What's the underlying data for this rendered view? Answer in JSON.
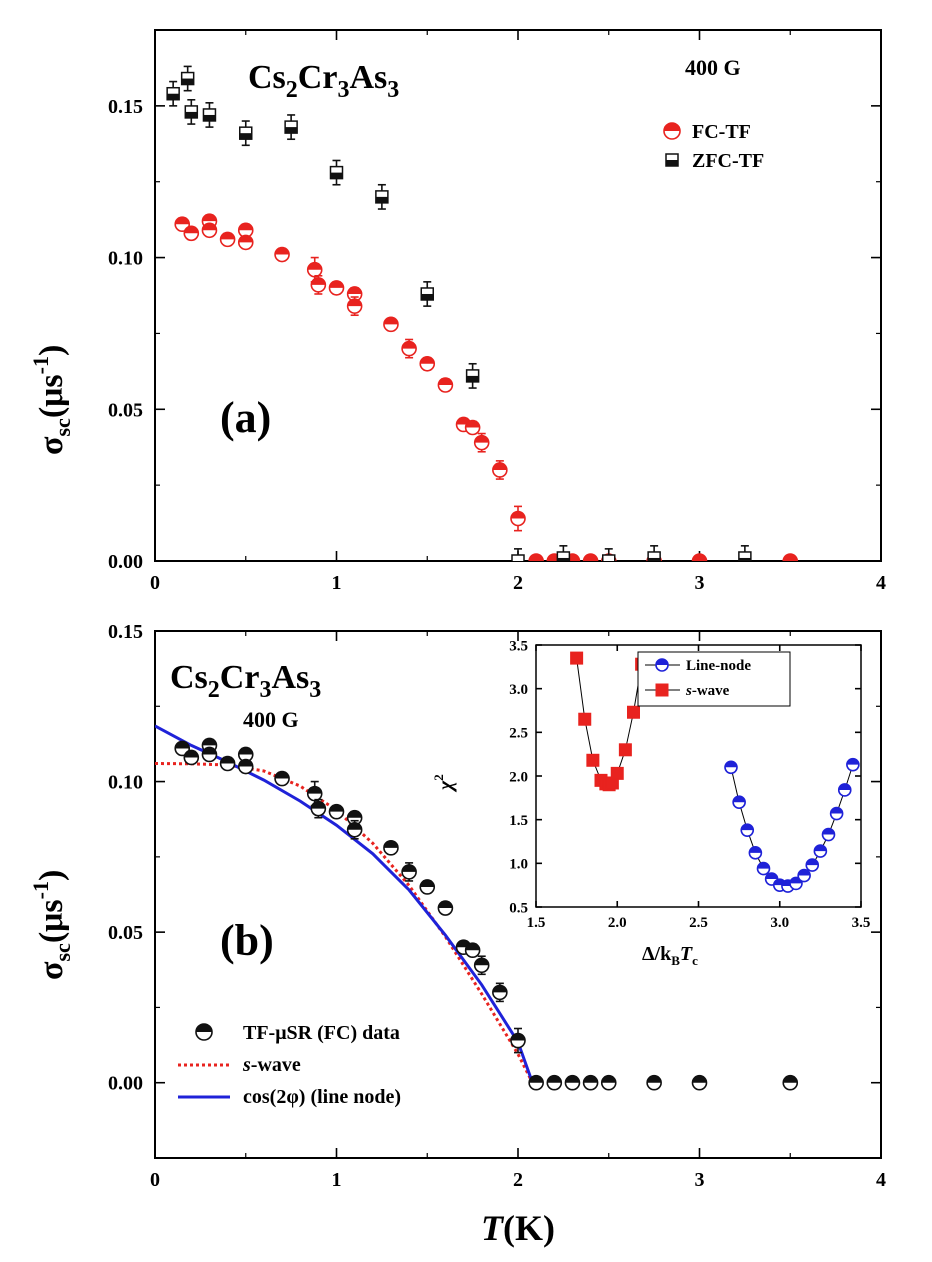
{
  "chart_data": [
    {
      "panel": "(a)",
      "type": "scatter",
      "compound": {
        "a": "Cs",
        "a_sub": "2",
        "b": "Cr",
        "b_sub": "3",
        "c": "As",
        "c_sub": "3"
      },
      "field": "400 G",
      "xlim": [
        0,
        4
      ],
      "ylim": [
        0,
        0.175
      ],
      "x_ticks": [
        "0",
        "1",
        "2",
        "3",
        "4"
      ],
      "y_ticks": [
        "0.00",
        "0.05",
        "0.10",
        "0.15"
      ],
      "ylabel": {
        "main": "σ",
        "sub": "sc",
        "open": "(μs",
        "sup": "-1",
        "close": ")"
      },
      "legend_position": "top-right",
      "series": [
        {
          "name": "FC-TF",
          "color": "#e8231f",
          "marker": "half-circle",
          "x": [
            0.15,
            0.2,
            0.3,
            0.3,
            0.4,
            0.5,
            0.5,
            0.7,
            0.88,
            0.9,
            1.0,
            1.1,
            1.1,
            1.3,
            1.4,
            1.5,
            1.6,
            1.7,
            1.75,
            1.8,
            1.9,
            2.0,
            2.1,
            2.2,
            2.3,
            2.4,
            2.5,
            2.75,
            3.0,
            3.5
          ],
          "y": [
            0.111,
            0.108,
            0.112,
            0.109,
            0.106,
            0.109,
            0.105,
            0.101,
            0.096,
            0.091,
            0.09,
            0.088,
            0.084,
            0.078,
            0.07,
            0.065,
            0.058,
            0.045,
            0.044,
            0.039,
            0.03,
            0.014,
            0.0,
            0.0,
            0.0,
            0.0,
            0.0,
            0.0,
            0.0,
            0.0
          ],
          "err": [
            0.002,
            0.002,
            0.002,
            0.002,
            0.002,
            0.002,
            0.002,
            0.002,
            0.004,
            0.003,
            0.002,
            0.002,
            0.003,
            0.002,
            0.003,
            0.002,
            0.002,
            0.002,
            0.002,
            0.003,
            0.003,
            0.004,
            0.0,
            0.0,
            0.0,
            0.0,
            0.0,
            0.0,
            0.0,
            0.0
          ]
        },
        {
          "name": "ZFC-TF",
          "color": "#111111",
          "marker": "half-square",
          "x": [
            0.1,
            0.18,
            0.2,
            0.3,
            0.5,
            0.75,
            1.0,
            1.25,
            1.5,
            1.75,
            2.0,
            2.25,
            2.5,
            2.75,
            3.25
          ],
          "y": [
            0.154,
            0.159,
            0.148,
            0.147,
            0.141,
            0.143,
            0.128,
            0.12,
            0.088,
            0.061,
            0.0,
            0.001,
            0.0,
            0.001,
            0.001
          ],
          "err": [
            0.004,
            0.004,
            0.004,
            0.004,
            0.004,
            0.004,
            0.004,
            0.004,
            0.004,
            0.004,
            0.004,
            0.004,
            0.004,
            0.004,
            0.004
          ]
        }
      ]
    },
    {
      "panel": "(b)",
      "type": "scatter",
      "compound": {
        "a": "Cs",
        "a_sub": "2",
        "b": "Cr",
        "b_sub": "3",
        "c": "As",
        "c_sub": "3"
      },
      "field": "400 G",
      "xlim": [
        0,
        4
      ],
      "ylim": [
        -0.025,
        0.15
      ],
      "x_ticks": [
        "0",
        "1",
        "2",
        "3",
        "4"
      ],
      "y_ticks": [
        "0.00",
        "0.05",
        "0.10",
        "0.15"
      ],
      "ylabel": {
        "main": "σ",
        "sub": "sc",
        "open": "(μs",
        "sup": "-1",
        "close": ")"
      },
      "xlabel": {
        "main": "T",
        "unit": "(K)"
      },
      "legend_position": "bottom-left",
      "series": [
        {
          "name": "TF-μSR (FC) data",
          "color": "#111111",
          "marker": "half-circle",
          "x": [
            0.15,
            0.2,
            0.3,
            0.3,
            0.4,
            0.5,
            0.5,
            0.7,
            0.88,
            0.9,
            1.0,
            1.1,
            1.1,
            1.3,
            1.4,
            1.5,
            1.6,
            1.7,
            1.75,
            1.8,
            1.9,
            2.0,
            2.1,
            2.2,
            2.3,
            2.4,
            2.5,
            2.75,
            3.0,
            3.5
          ],
          "y": [
            0.111,
            0.108,
            0.112,
            0.109,
            0.106,
            0.109,
            0.105,
            0.101,
            0.096,
            0.091,
            0.09,
            0.088,
            0.084,
            0.078,
            0.07,
            0.065,
            0.058,
            0.045,
            0.044,
            0.039,
            0.03,
            0.014,
            0.0,
            0.0,
            0.0,
            0.0,
            0.0,
            0.0,
            0.0,
            0.0
          ],
          "err": [
            0.002,
            0.002,
            0.002,
            0.002,
            0.002,
            0.002,
            0.002,
            0.002,
            0.004,
            0.003,
            0.002,
            0.002,
            0.003,
            0.002,
            0.003,
            0.002,
            0.002,
            0.002,
            0.002,
            0.003,
            0.003,
            0.004,
            0.0,
            0.0,
            0.0,
            0.0,
            0.0,
            0.0,
            0.0,
            0.0
          ]
        },
        {
          "name": "s-wave",
          "label_italic": "s",
          "label_rest": "-wave",
          "color": "#e8231f",
          "style": "dotted",
          "x": [
            0.0,
            0.2,
            0.4,
            0.6,
            0.8,
            1.0,
            1.2,
            1.4,
            1.6,
            1.8,
            2.0,
            2.08
          ],
          "y": [
            0.106,
            0.1059,
            0.1055,
            0.1035,
            0.0985,
            0.0905,
            0.0795,
            0.0655,
            0.0485,
            0.0295,
            0.0095,
            0.0
          ]
        },
        {
          "name": "cos(2φ) (line node)",
          "color": "#1f22d8",
          "style": "solid",
          "x": [
            0.0,
            0.2,
            0.4,
            0.6,
            0.8,
            1.0,
            1.2,
            1.4,
            1.6,
            1.8,
            2.0,
            2.08
          ],
          "y": [
            0.1185,
            0.112,
            0.1065,
            0.1005,
            0.0935,
            0.0855,
            0.076,
            0.064,
            0.049,
            0.0325,
            0.0135,
            0.0
          ]
        }
      ],
      "inset": {
        "xlim": [
          1.5,
          3.5
        ],
        "ylim": [
          0.5,
          3.5
        ],
        "x_ticks": [
          "1.5",
          "2.0",
          "2.5",
          "3.0",
          "3.5"
        ],
        "y_ticks": [
          "0.5",
          "1.0",
          "1.5",
          "2.0",
          "2.5",
          "3.0",
          "3.5"
        ],
        "ylabel": {
          "main": "χ",
          "sup": "2"
        },
        "xlabel": {
          "main": "Δ/k",
          "sub1": "B",
          "italic": "T",
          "sub2": "c"
        },
        "series": [
          {
            "name": "Line-node",
            "color": "#1f22d8",
            "marker": "half-circle",
            "x": [
              2.7,
              2.75,
              2.8,
              2.85,
              2.9,
              2.95,
              3.0,
              3.05,
              3.1,
              3.15,
              3.2,
              3.25,
              3.3,
              3.35,
              3.4,
              3.45
            ],
            "y": [
              2.1,
              1.7,
              1.38,
              1.12,
              0.94,
              0.82,
              0.75,
              0.74,
              0.77,
              0.86,
              0.98,
              1.14,
              1.33,
              1.57,
              1.84,
              2.13
            ]
          },
          {
            "name": "s-wave",
            "label_italic": "s",
            "label_rest": "-wave",
            "color": "#e8231f",
            "marker": "square",
            "x": [
              1.75,
              1.8,
              1.85,
              1.9,
              1.93,
              1.95,
              1.97,
              2.0,
              2.05,
              2.1,
              2.15
            ],
            "y": [
              3.35,
              2.65,
              2.18,
              1.95,
              1.91,
              1.9,
              1.92,
              2.03,
              2.3,
              2.73,
              3.28
            ]
          }
        ]
      }
    }
  ]
}
